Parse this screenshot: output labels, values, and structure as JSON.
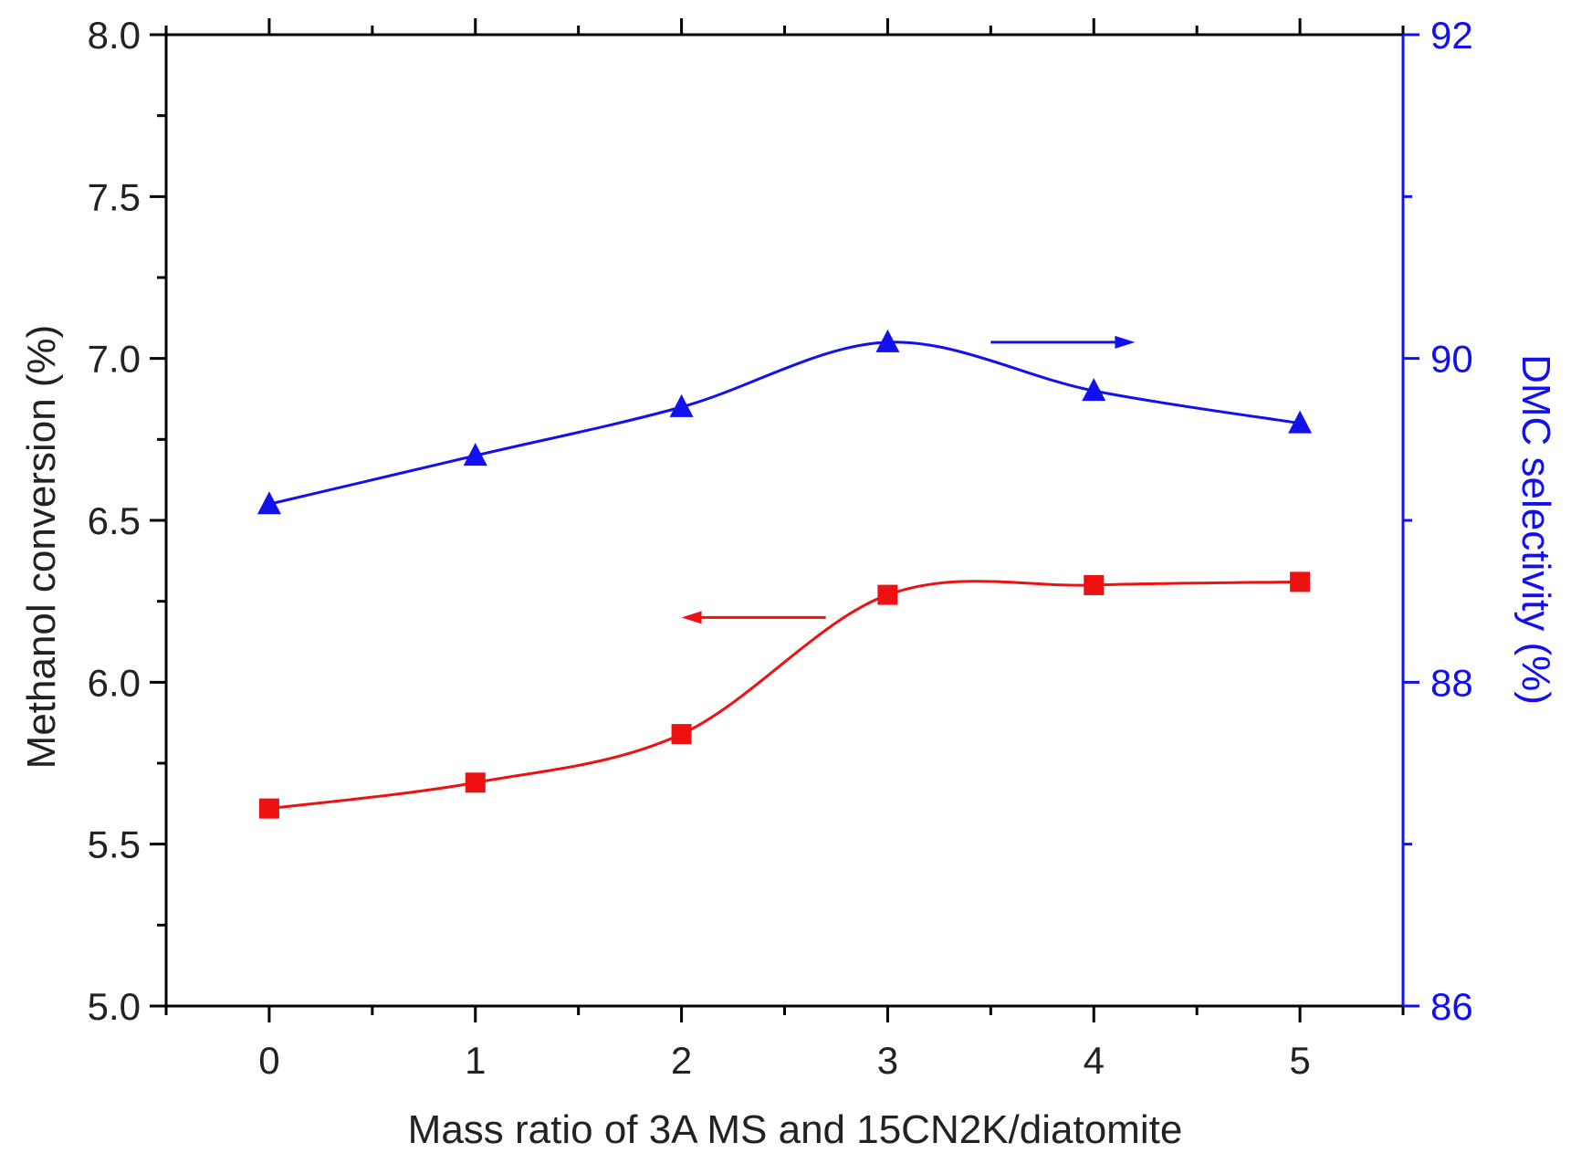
{
  "chart_data": {
    "type": "line",
    "xlabel": "Mass ratio of 3A MS and 15CN2K/diatomite",
    "ylabel_left": "Methanol conversion (%)",
    "ylabel_right": "DMC selectivity (%)",
    "x": [
      0,
      1,
      2,
      3,
      4,
      5
    ],
    "xlim": [
      -0.5,
      5.5
    ],
    "x_ticks": [
      "0",
      "1",
      "2",
      "3",
      "4",
      "5"
    ],
    "ylim_left": [
      5.0,
      8.0
    ],
    "y_left_ticks": [
      "5.0",
      "5.5",
      "6.0",
      "6.5",
      "7.0",
      "7.5",
      "8.0"
    ],
    "ylim_right": [
      86,
      92
    ],
    "y_right_ticks": [
      "86",
      "88",
      "90",
      "92"
    ],
    "series": [
      {
        "name": "Methanol conversion",
        "axis": "left",
        "marker": "square",
        "color": "#ee1111",
        "values": [
          5.61,
          5.69,
          5.84,
          6.27,
          6.3,
          6.31
        ]
      },
      {
        "name": "DMC selectivity",
        "axis": "right",
        "marker": "triangle",
        "color": "#1111ee",
        "values": [
          89.1,
          89.4,
          89.7,
          90.1,
          89.8,
          89.6
        ]
      }
    ],
    "annotations": [
      {
        "series": "DMC selectivity",
        "arrow": "right",
        "x_from": 3.5,
        "x_to": 4.2,
        "y": 90.1
      },
      {
        "series": "Methanol conversion",
        "arrow": "left",
        "x_from": 2.7,
        "x_to": 2.0,
        "y": 6.2
      }
    ],
    "grid": false,
    "colors": {
      "axis": "#000000",
      "right_axis": "#1111ee"
    }
  }
}
